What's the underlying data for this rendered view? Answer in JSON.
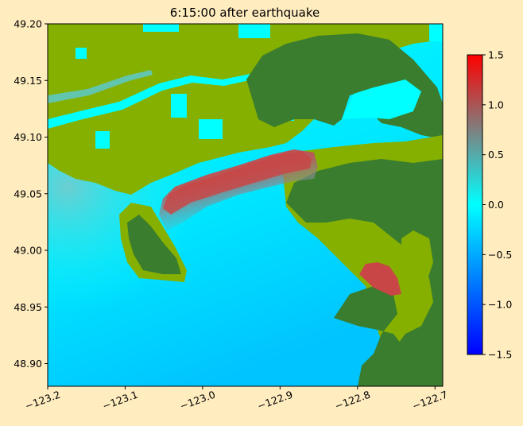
{
  "chart_data": {
    "type": "heatmap",
    "title": "6:15:00 after earthquake",
    "xlabel": "",
    "ylabel": "",
    "xlim": [
      -123.2,
      -122.69
    ],
    "ylim": [
      48.88,
      49.2
    ],
    "x_ticks": [
      -123.2,
      -123.1,
      -123.0,
      -122.9,
      -122.8,
      -122.7
    ],
    "x_tick_labels": [
      "−123.2",
      "−123.1",
      "−123.0",
      "−122.9",
      "−122.8",
      "−122.7"
    ],
    "y_ticks": [
      48.9,
      48.95,
      49.0,
      49.05,
      49.1,
      49.15,
      49.2
    ],
    "y_tick_labels": [
      "48.90",
      "48.95",
      "49.00",
      "49.05",
      "49.10",
      "49.15",
      "49.20"
    ],
    "colorbar": {
      "range": [
        -1.5,
        1.5
      ],
      "ticks": [
        -1.5,
        -1.0,
        -0.5,
        0.0,
        0.5,
        1.0,
        1.5
      ],
      "tick_labels": [
        "−1.5",
        "−1.0",
        "−0.5",
        "0.0",
        "0.5",
        "1.0",
        "1.5"
      ],
      "colormap": [
        "#0000ff",
        "#00ffff",
        "#ff0000"
      ]
    },
    "colors": {
      "water": "#00ffff",
      "deep_water": "#00c8ff",
      "low_land": "#86b000",
      "high_land": "#3a7d2e",
      "high_surge": "#c84040"
    }
  }
}
